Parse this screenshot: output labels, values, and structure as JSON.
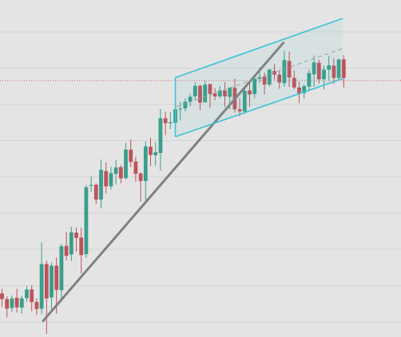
{
  "colors": {
    "background": "#e4e4e4",
    "grid": "#d3d3d3",
    "up_candle": "#3a9e8a",
    "down_candle": "#c0525a",
    "trendline": "#808080",
    "channel": "#3cc3d6",
    "channel_mid": "#9aa0a0",
    "price_line": "#e05555"
  },
  "chart_data": {
    "type": "candlestick",
    "title": "",
    "xlabel": "",
    "ylabel": "",
    "grid": true,
    "legend": "none",
    "x_count": 70,
    "ylim": [
      0,
      100
    ],
    "current_price": 76.6,
    "candles": [
      [
        12.2,
        10.5,
        13.6,
        8.2
      ],
      [
        10.5,
        7.6,
        11.3,
        5.0
      ],
      [
        7.8,
        10.7,
        11.6,
        6.6
      ],
      [
        10.9,
        8.0,
        13.6,
        6.4
      ],
      [
        7.9,
        10.7,
        11.4,
        6.1
      ],
      [
        10.8,
        13.4,
        14.4,
        9.7
      ],
      [
        13.4,
        9.6,
        14.7,
        6.8
      ],
      [
        9.6,
        7.5,
        10.7,
        5.8
      ],
      [
        7.6,
        21.1,
        27.7,
        5.9
      ],
      [
        21.1,
        10.7,
        22.1,
        0.0
      ],
      [
        11.0,
        20.6,
        21.6,
        6.6
      ],
      [
        20.6,
        13.3,
        23.1,
        6.1
      ],
      [
        13.2,
        26.5,
        27.2,
        10.2
      ],
      [
        26.6,
        23.6,
        30.8,
        22.3
      ],
      [
        24.0,
        30.7,
        32.4,
        22.0
      ],
      [
        30.6,
        29.0,
        32.1,
        24.8
      ],
      [
        29.1,
        23.8,
        32.1,
        18.3
      ],
      [
        24.1,
        44.3,
        45.1,
        22.9
      ],
      [
        44.8,
        45.0,
        47.6,
        42.9
      ],
      [
        45.1,
        40.6,
        45.5,
        39.3
      ],
      [
        40.6,
        49.6,
        52.7,
        38.0
      ],
      [
        49.2,
        44.6,
        51.9,
        42.5
      ],
      [
        44.6,
        48.6,
        50.5,
        43.6
      ],
      [
        48.4,
        50.3,
        52.5,
        45.2
      ],
      [
        50.4,
        47.0,
        51.0,
        45.5
      ],
      [
        47.1,
        55.7,
        57.7,
        46.6
      ],
      [
        55.7,
        52.0,
        58.8,
        50.4
      ],
      [
        52.1,
        48.4,
        53.5,
        46.1
      ],
      [
        48.5,
        46.2,
        48.9,
        39.9
      ],
      [
        46.2,
        56.7,
        58.1,
        39.3
      ],
      [
        56.6,
        54.1,
        59.3,
        50.7
      ],
      [
        54.0,
        54.9,
        58.0,
        50.8
      ],
      [
        54.7,
        65.2,
        68.0,
        49.4
      ],
      [
        65.2,
        63.7,
        67.2,
        60.1
      ],
      [
        63.7,
        64.0,
        67.0,
        61.9
      ],
      [
        63.8,
        67.9,
        68.1,
        62.9
      ],
      [
        67.9,
        68.1,
        70.1,
        64.6
      ],
      [
        68.2,
        70.2,
        71.2,
        67.3
      ],
      [
        70.2,
        71.7,
        72.6,
        68.8
      ],
      [
        71.8,
        75.0,
        76.1,
        70.6
      ],
      [
        75.0,
        69.9,
        75.4,
        67.6
      ],
      [
        70.0,
        75.4,
        76.5,
        70.3
      ],
      [
        75.5,
        72.6,
        75.7,
        68.3
      ],
      [
        72.7,
        71.8,
        74.3,
        70.7
      ],
      [
        71.8,
        73.6,
        74.9,
        71.2
      ],
      [
        73.6,
        71.8,
        76.1,
        68.6
      ],
      [
        71.7,
        74.5,
        74.5,
        67.9
      ],
      [
        74.4,
        67.9,
        77.1,
        66.9
      ],
      [
        67.9,
        67.3,
        71.4,
        65.8
      ],
      [
        67.2,
        73.5,
        74.2,
        66.5
      ],
      [
        73.6,
        72.4,
        76.3,
        68.7
      ],
      [
        72.5,
        77.1,
        78.4,
        71.3
      ],
      [
        77.1,
        77.7,
        80.6,
        75.9
      ],
      [
        77.8,
        75.4,
        79.1,
        72.4
      ],
      [
        75.4,
        79.9,
        80.1,
        74.8
      ],
      [
        79.5,
        78.4,
        81.6,
        77.0
      ],
      [
        78.4,
        76.0,
        79.4,
        74.1
      ],
      [
        75.8,
        82.8,
        85.7,
        74.7
      ],
      [
        82.5,
        77.5,
        85.4,
        74.7
      ],
      [
        77.4,
        74.5,
        79.7,
        73.9
      ],
      [
        74.5,
        72.7,
        76.2,
        69.8
      ],
      [
        72.8,
        74.9,
        75.4,
        71.2
      ],
      [
        74.8,
        78.9,
        79.9,
        73.5
      ],
      [
        78.5,
        82.1,
        84.2,
        74.7
      ],
      [
        82.0,
        77.0,
        82.9,
        75.7
      ],
      [
        77.0,
        79.9,
        81.2,
        73.9
      ],
      [
        79.9,
        81.2,
        84.1,
        76.6
      ],
      [
        81.1,
        77.4,
        83.3,
        75.6
      ],
      [
        77.4,
        83.0,
        83.2,
        76.8
      ],
      [
        83.0,
        77.4,
        84.3,
        74.5
      ]
    ],
    "trendline": {
      "from": [
        8.3,
        3.9
      ],
      "to": [
        56.8,
        88.0
      ]
    },
    "channel": {
      "upper": {
        "from": [
          35.0,
          77.5
        ],
        "to": [
          68.8,
          95.4
        ]
      },
      "lower": {
        "from": [
          35.0,
          59.6
        ],
        "to": [
          68.8,
          77.2
        ]
      },
      "middle": {
        "from": [
          35.0,
          68.6
        ],
        "to": [
          68.8,
          86.3
        ]
      }
    }
  }
}
